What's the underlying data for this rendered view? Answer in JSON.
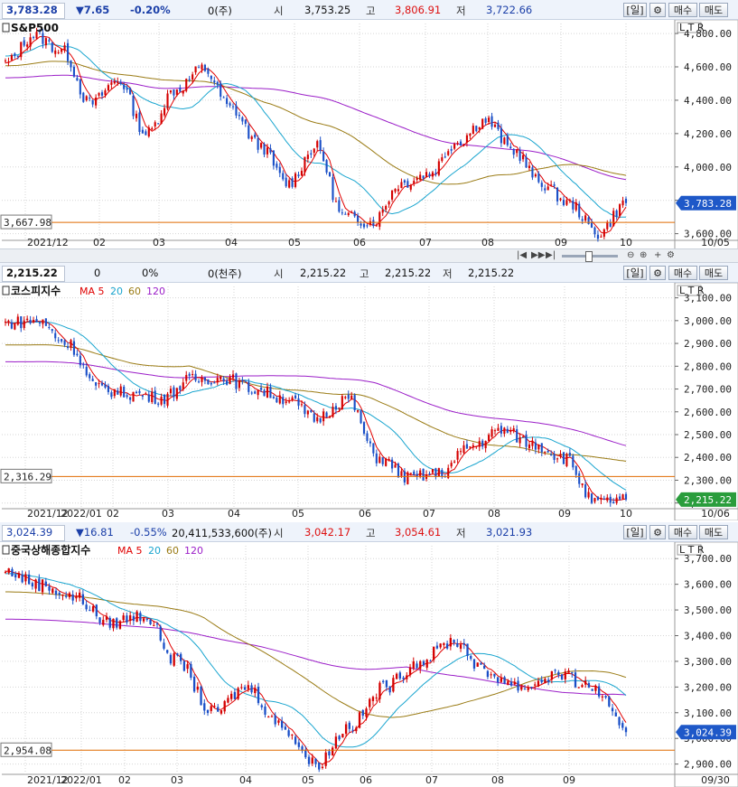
{
  "colors": {
    "up": "#d40000",
    "down": "#1a4fc7",
    "ma5": "#e00000",
    "ma20": "#19a5cf",
    "ma60": "#9a7b14",
    "ma120": "#9b1ec8",
    "hline": "#e06a00",
    "grid": "#d6d6d6",
    "tag_blue": "#1e58c8",
    "tag_green": "#2a9d3c"
  },
  "panels": [
    {
      "id": "spx",
      "info": {
        "price": "3,783.28",
        "chg": "▼7.65",
        "pct": "-0.20%",
        "vol": "0(주)",
        "open_lbl": "시",
        "open": "3,753.25",
        "high_lbl": "고",
        "high": "3,806.91",
        "low_lbl": "저",
        "low": "3,722.66",
        "period": "일",
        "buy": "매수",
        "sell": "매도"
      },
      "title": "S&P500",
      "ma_legend": [],
      "ltr": "L T R",
      "date_right": "10/05",
      "level_label": "3,667.98",
      "last_tag": "3,783.28"
    },
    {
      "id": "kospi",
      "info": {
        "price": "2,215.22",
        "chg": "0",
        "pct": "0%",
        "vol": "0(천주)",
        "open_lbl": "시",
        "open": "2,215.22",
        "high_lbl": "고",
        "high": "2,215.22",
        "low_lbl": "저",
        "low": "2,215.22",
        "period": "일",
        "buy": "매수",
        "sell": "매도"
      },
      "title": "코스피지수",
      "ma_legend": [
        "MA 5",
        "20",
        "60",
        "120"
      ],
      "ltr": "L T R",
      "date_right": "10/06",
      "level_label": "2,316.29",
      "last_tag": "2,215.22"
    },
    {
      "id": "shcomp",
      "info": {
        "price": "3,024.39",
        "chg": "▼16.81",
        "pct": "-0.55%",
        "vol": "20,411,533,600(주)",
        "open_lbl": "시",
        "open": "3,042.17",
        "high_lbl": "고",
        "high": "3,054.61",
        "low_lbl": "저",
        "low": "3,021.93",
        "period": "일",
        "buy": "매수",
        "sell": "매도"
      },
      "title": "중국상해종합지수",
      "ma_legend": [
        "MA 5",
        "20",
        "60",
        "120"
      ],
      "ltr": "L T R",
      "date_right": "09/30",
      "level_label": "2,954.08",
      "last_tag": "3,024.39"
    }
  ],
  "scrollbar": {
    "buttons": [
      "|◀",
      "▶▶",
      "▶|"
    ],
    "zoom": [
      "⊖",
      "⊕",
      "+",
      "⚙"
    ]
  },
  "chart_data": [
    {
      "type": "line",
      "title": "S&P500",
      "ylim": [
        3560,
        4860
      ],
      "y_ticks": [
        3600,
        3800,
        4000,
        4200,
        4400,
        4600,
        4800
      ],
      "y_tick_labels": [
        "3,600.00",
        "3,800.00",
        "4,000.00",
        "4,200.00",
        "4,400.00",
        "4,600.00",
        "4,800.00"
      ],
      "x_tick_labels": [
        "2021/12",
        "02",
        "03",
        "04",
        "05",
        "06",
        "07",
        "08",
        "09",
        "10"
      ],
      "x": [
        "2021-12",
        "2022-01",
        "2022-01",
        "2022-02",
        "2022-02",
        "2022-03",
        "2022-03",
        "2022-04",
        "2022-04",
        "2022-05",
        "2022-05",
        "2022-06",
        "2022-06",
        "2022-06",
        "2022-07",
        "2022-07",
        "2022-08",
        "2022-08",
        "2022-08",
        "2022-09",
        "2022-09",
        "2022-09",
        "2022-10"
      ],
      "series": [
        {
          "name": "",
          "values": [
            4620,
            4790,
            4700,
            4380,
            4520,
            4200,
            4460,
            4590,
            4350,
            4130,
            3900,
            4120,
            3700,
            3670,
            3900,
            3960,
            4150,
            4280,
            4100,
            3900,
            3780,
            3600,
            3783
          ]
        }
      ],
      "hline": 3667.98,
      "last": 3783.28
    },
    {
      "type": "line",
      "title": "코스피지수",
      "ylim": [
        2175,
        3150
      ],
      "y_ticks": [
        2200,
        2300,
        2400,
        2500,
        2600,
        2700,
        2800,
        2900,
        3000,
        3100
      ],
      "y_tick_labels": [
        "2,200.00",
        "2,300.00",
        "2,400.00",
        "2,500.00",
        "2,600.00",
        "2,700.00",
        "2,800.00",
        "2,900.00",
        "3,000.00",
        "3,100.00"
      ],
      "x_tick_labels": [
        "2021/12",
        "2022/01",
        "02",
        "03",
        "04",
        "05",
        "06",
        "07",
        "08",
        "09",
        "10"
      ],
      "x": [
        "2021-12",
        "2022-01",
        "2022-01",
        "2022-02",
        "2022-02",
        "2022-03",
        "2022-03",
        "2022-04",
        "2022-04",
        "2022-05",
        "2022-05",
        "2022-06",
        "2022-06",
        "2022-07",
        "2022-07",
        "2022-08",
        "2022-08",
        "2022-09",
        "2022-09",
        "2022-09",
        "2022-10"
      ],
      "series": [
        {
          "name": "",
          "values": [
            2990,
            3000,
            2900,
            2700,
            2680,
            2660,
            2740,
            2750,
            2700,
            2660,
            2570,
            2660,
            2400,
            2310,
            2330,
            2450,
            2520,
            2460,
            2400,
            2200,
            2215
          ]
        }
      ],
      "hline": 2316.29,
      "last": 2215.22
    },
    {
      "type": "line",
      "title": "중국상해종합지수",
      "ylim": [
        2860,
        3750
      ],
      "y_ticks": [
        2900,
        3000,
        3100,
        3200,
        3300,
        3400,
        3500,
        3600,
        3700
      ],
      "y_tick_labels": [
        "2,900.00",
        "3,000.00",
        "3,100.00",
        "3,200.00",
        "3,300.00",
        "3,400.00",
        "3,500.00",
        "3,600.00",
        "3,700.00"
      ],
      "x_tick_labels": [
        "2021/12",
        "2022/01",
        "02",
        "03",
        "04",
        "05",
        "06",
        "07",
        "08",
        "09"
      ],
      "x": [
        "2021-12",
        "2022-01",
        "2022-01",
        "2022-02",
        "2022-02",
        "2022-03",
        "2022-03",
        "2022-04",
        "2022-04",
        "2022-05",
        "2022-05",
        "2022-06",
        "2022-06",
        "2022-07",
        "2022-07",
        "2022-08",
        "2022-08",
        "2022-09",
        "2022-09"
      ],
      "series": [
        {
          "name": "",
          "values": [
            3650,
            3600,
            3550,
            3450,
            3480,
            3300,
            3100,
            3200,
            3050,
            2900,
            3050,
            3200,
            3300,
            3380,
            3250,
            3200,
            3250,
            3200,
            3024
          ]
        }
      ],
      "hline": 2954.08,
      "last": 3024.39
    }
  ]
}
